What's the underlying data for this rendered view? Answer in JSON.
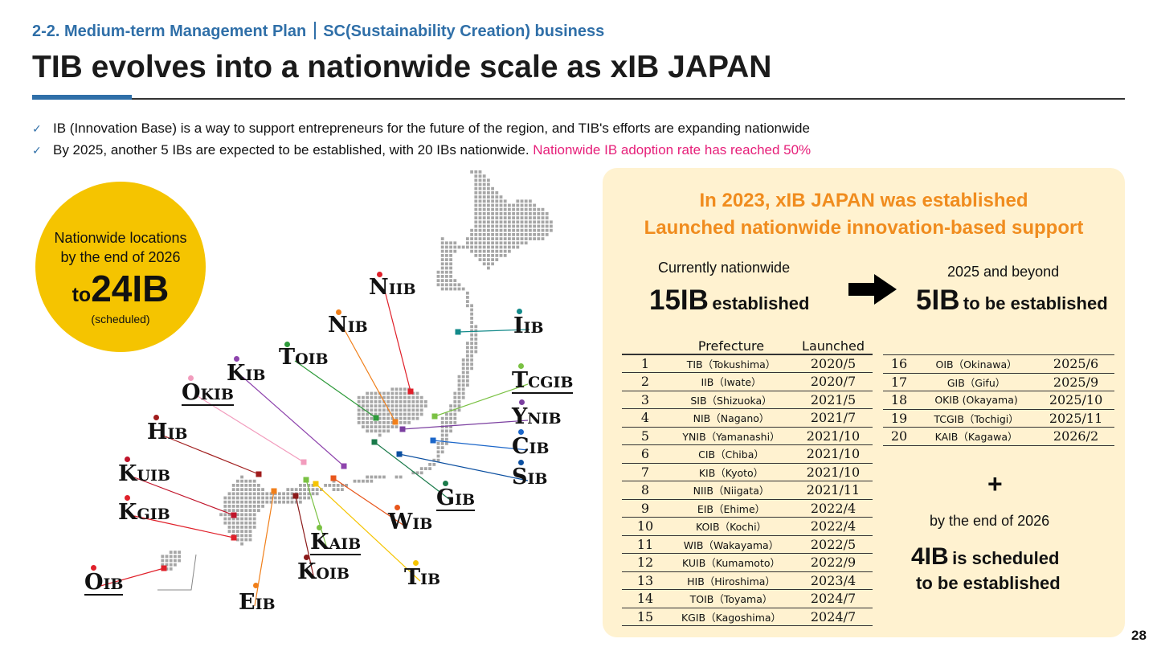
{
  "header": {
    "section": "2-2. Medium-term Management Plan",
    "subsection": "SC(Sustainability Creation) business",
    "title": "TIB evolves into a nationwide scale as xIB JAPAN"
  },
  "bullets": [
    {
      "text": "IB (Innovation Base) is a way to support entrepreneurs for the future of the region, and TIB's efforts are expanding nationwide",
      "highlight": ""
    },
    {
      "text": "By 2025, another 5 IBs are expected to be established, with 20 IBs nationwide.",
      "highlight": "Nationwide IB adoption rate has reached 50%"
    }
  ],
  "circle": {
    "line1": "Nationwide locations",
    "line2": "by the end of 2026",
    "prefix": "to",
    "value": "24IB",
    "note": "(scheduled)"
  },
  "map": {
    "labels": [
      {
        "id": "niib",
        "first": "N",
        "rest": "IIB",
        "dot": "#e0202a",
        "line": "#e0202a"
      },
      {
        "id": "nib",
        "first": "N",
        "rest": "IB",
        "dot": "#f07f1a",
        "line": "#f07f1a"
      },
      {
        "id": "toib",
        "first": "T",
        "rest": "OIB",
        "dot": "#2e9a3a",
        "line": "#2e9a3a"
      },
      {
        "id": "kib",
        "first": "K",
        "rest": "IB",
        "dot": "#8e44ad",
        "line": "#8e44ad"
      },
      {
        "id": "okib",
        "first": "O",
        "rest": "KIB",
        "dot": "#f29cbd",
        "line": "#f29cbd"
      },
      {
        "id": "hib",
        "first": "H",
        "rest": "IB",
        "dot": "#a01c1c",
        "line": "#a01c1c"
      },
      {
        "id": "kuib",
        "first": "K",
        "rest": "UIB",
        "dot": "#c0142a",
        "line": "#c0142a"
      },
      {
        "id": "kgib",
        "first": "K",
        "rest": "GIB",
        "dot": "#e0202a",
        "line": "#e0202a"
      },
      {
        "id": "oib",
        "first": "O",
        "rest": "IB",
        "dot": "#e0202a",
        "line": "#e0202a"
      },
      {
        "id": "eib",
        "first": "E",
        "rest": "IB",
        "dot": "#f07f1a",
        "line": "#f07f1a"
      },
      {
        "id": "koib",
        "first": "K",
        "rest": "OIB",
        "dot": "#8b1a1a",
        "line": "#8b1a1a"
      },
      {
        "id": "kaib",
        "first": "K",
        "rest": "AIB",
        "dot": "#7ac143",
        "line": "#7ac143"
      },
      {
        "id": "tib",
        "first": "T",
        "rest": "IB",
        "dot": "#f5c400",
        "line": "#f5c400"
      },
      {
        "id": "wib",
        "first": "W",
        "rest": "IB",
        "dot": "#e8561b",
        "line": "#e8561b"
      },
      {
        "id": "gib",
        "first": "G",
        "rest": "IB",
        "dot": "#1a7a4a",
        "line": "#1a7a4a"
      },
      {
        "id": "sib",
        "first": "S",
        "rest": "IB",
        "dot": "#0b4fa0",
        "line": "#0b4fa0"
      },
      {
        "id": "cib",
        "first": "C",
        "rest": "IB",
        "dot": "#1b66c9",
        "line": "#1b66c9"
      },
      {
        "id": "ynib",
        "first": "Y",
        "rest": "NIB",
        "dot": "#7b3fa0",
        "line": "#7b3fa0"
      },
      {
        "id": "tcgib",
        "first": "T",
        "rest": "CGIB",
        "dot": "#7ac143",
        "line": "#7ac143"
      },
      {
        "id": "iib",
        "first": "I",
        "rest": "IB",
        "dot": "#138a8a",
        "line": "#138a8a"
      }
    ]
  },
  "panel": {
    "title1": "In 2023, xIB JAPAN was established",
    "title2": "Launched nationwide innovation-based support",
    "now_label": "Currently nationwide",
    "now_value": "15IB",
    "now_suffix": "established",
    "later_label": "2025 and beyond",
    "later_value": "5IB",
    "later_suffix": "to be established",
    "table_headers": {
      "prefecture": "Prefecture",
      "launched": "Launched"
    },
    "table1": [
      {
        "no": "1",
        "pref": "TIB（Tokushima）",
        "date": "2020/5"
      },
      {
        "no": "2",
        "pref": "IIB（Iwate）",
        "date": "2020/7"
      },
      {
        "no": "3",
        "pref": "SIB（Shizuoka）",
        "date": "2021/5"
      },
      {
        "no": "4",
        "pref": "NIB（Nagano）",
        "date": "2021/7"
      },
      {
        "no": "5",
        "pref": "YNIB（Yamanashi）",
        "date": "2021/10"
      },
      {
        "no": "6",
        "pref": "CIB（Chiba）",
        "date": "2021/10"
      },
      {
        "no": "7",
        "pref": "KIB（Kyoto）",
        "date": "2021/10"
      },
      {
        "no": "8",
        "pref": "NIIB（Niigata）",
        "date": "2021/11"
      },
      {
        "no": "9",
        "pref": "EIB（Ehime）",
        "date": "2022/4"
      },
      {
        "no": "10",
        "pref": "KOIB（Kochi）",
        "date": "2022/4"
      },
      {
        "no": "11",
        "pref": "WIB（Wakayama）",
        "date": "2022/5"
      },
      {
        "no": "12",
        "pref": "KUIB（Kumamoto）",
        "date": "2022/9"
      },
      {
        "no": "13",
        "pref": "HIB（Hiroshima）",
        "date": "2023/4"
      },
      {
        "no": "14",
        "pref": "TOIB（Toyama）",
        "date": "2024/7"
      },
      {
        "no": "15",
        "pref": "KGIB（Kagoshima）",
        "date": "2024/7"
      }
    ],
    "table2": [
      {
        "no": "16",
        "pref": "OIB（Okinawa）",
        "date": "2025/6"
      },
      {
        "no": "17",
        "pref": "GIB（Gifu）",
        "date": "2025/9"
      },
      {
        "no": "18",
        "pref": "OKIB (Okayama)",
        "date": "2025/10"
      },
      {
        "no": "19",
        "pref": "TCGIB（Tochigi）",
        "date": "2025/11"
      },
      {
        "no": "20",
        "pref": "KAIB（Kagawa）",
        "date": "2026/2"
      }
    ],
    "plus": "+",
    "by_end": "by the end of 2026",
    "sched_value": "4IB",
    "sched_suffix": "is scheduled",
    "sched_line2": "to be established"
  },
  "page_number": "28"
}
